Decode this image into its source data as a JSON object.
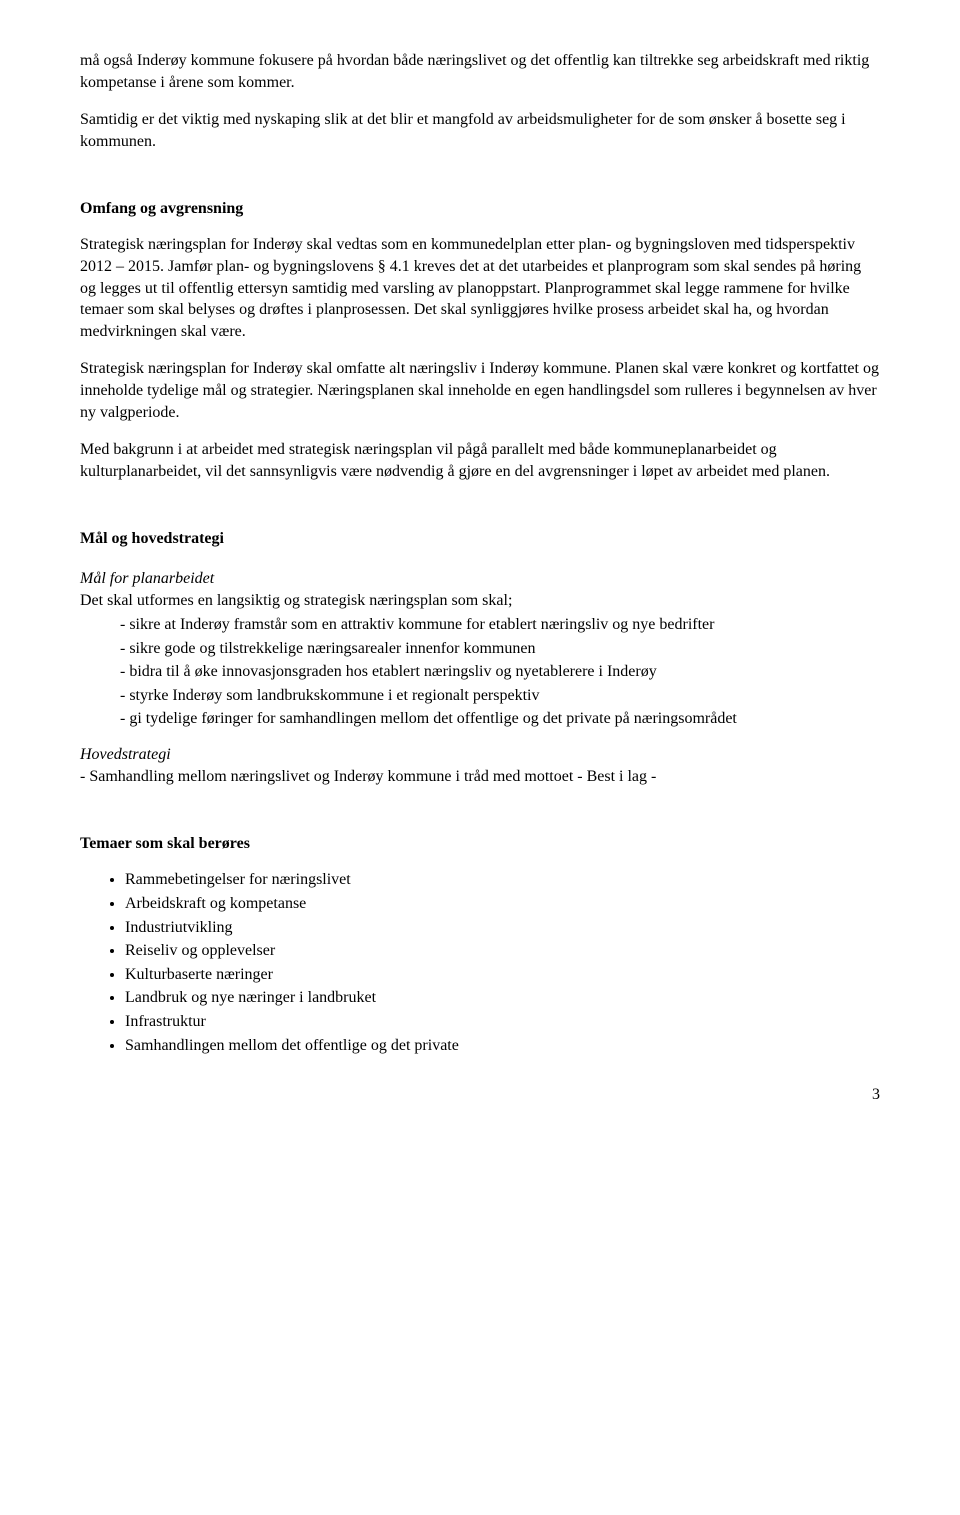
{
  "para1": "må også Inderøy kommune fokusere på hvordan både næringslivet og det offentlig kan tiltrekke seg arbeidskraft med riktig kompetanse i årene som kommer.",
  "para2": "Samtidig er det viktig med nyskaping slik at det blir et mangfold av arbeidsmuligheter for de som ønsker å bosette seg i kommunen.",
  "omfang": {
    "heading": "Omfang og avgrensning",
    "p1": "Strategisk næringsplan for Inderøy skal vedtas som en kommunedelplan etter plan- og bygningsloven med tidsperspektiv 2012 – 2015. Jamfør plan- og bygningslovens § 4.1 kreves det at det utarbeides et planprogram som skal sendes på høring og legges ut til offentlig ettersyn samtidig med varsling av planoppstart. Planprogrammet skal legge rammene for hvilke temaer som skal belyses og drøftes i planprosessen. Det skal synliggjøres hvilke prosess arbeidet skal ha, og hvordan medvirkningen skal være.",
    "p2": "Strategisk næringsplan for Inderøy skal omfatte alt næringsliv i Inderøy kommune. Planen skal være konkret og kortfattet og inneholde tydelige mål og strategier. Næringsplanen skal inneholde en egen handlingsdel som rulleres i begynnelsen av hver ny valgperiode.",
    "p3": "Med bakgrunn i at arbeidet med strategisk næringsplan vil pågå parallelt med både kommuneplanarbeidet og kulturplanarbeidet, vil det sannsynligvis være nødvendig å gjøre en del avgrensninger i løpet av arbeidet med planen."
  },
  "maal": {
    "heading": "Mål og hovedstrategi",
    "mfp_label": "Mål for planarbeidet",
    "mfp_intro": "Det skal utformes en langsiktig og strategisk næringsplan som skal;",
    "items": [
      "sikre at Inderøy framstår som en attraktiv kommune for etablert næringsliv og nye bedrifter",
      "sikre gode og tilstrekkelige næringsarealer innenfor kommunen",
      "bidra til å øke innovasjonsgraden hos etablert næringsliv og nyetablerere i Inderøy",
      "styrke Inderøy som landbrukskommune i et regionalt perspektiv",
      "gi tydelige føringer for samhandlingen mellom det offentlige og det private på næringsområdet"
    ],
    "hoved_label": "Hovedstrategi",
    "hoved_text": "- Samhandling mellom næringslivet og Inderøy kommune i tråd med mottoet - Best i lag -"
  },
  "temaer": {
    "heading": "Temaer som skal berøres",
    "items": [
      "Rammebetingelser for næringslivet",
      "Arbeidskraft og kompetanse",
      "Industriutvikling",
      "Reiseliv og opplevelser",
      "Kulturbaserte næringer",
      "Landbruk og nye næringer i landbruket",
      "Infrastruktur",
      "Samhandlingen mellom det offentlige og det private"
    ]
  },
  "page_number": "3"
}
